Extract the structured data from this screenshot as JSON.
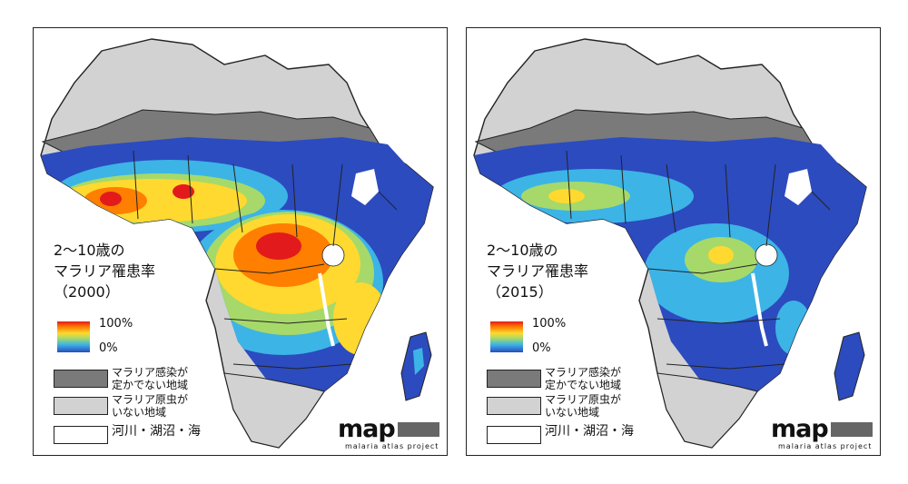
{
  "panels": [
    {
      "legend_title_lines": [
        "2～10歳の",
        "マラリア罹患率",
        "（2000）"
      ],
      "prevalence_level": "high"
    },
    {
      "legend_title_lines": [
        "2～10歳の",
        "マラリア罹患率",
        "（2015）"
      ],
      "prevalence_level": "low"
    }
  ],
  "legend": {
    "ramp_max": "100%",
    "ramp_min": "0%",
    "uncertain_area_lines": [
      "マラリア感染が",
      "定かでない地域"
    ],
    "no_parasite_lines": [
      "マラリア原虫が",
      "いない地域"
    ],
    "water": "河川・湖沼・海"
  },
  "logo": {
    "name": "map",
    "tagline": "malaria atlas project"
  },
  "colors": {
    "no_parasite": "#d2d2d2",
    "uncertain": "#7a7a7a",
    "low": "#2c4bbf",
    "high": "#e31a1c"
  }
}
